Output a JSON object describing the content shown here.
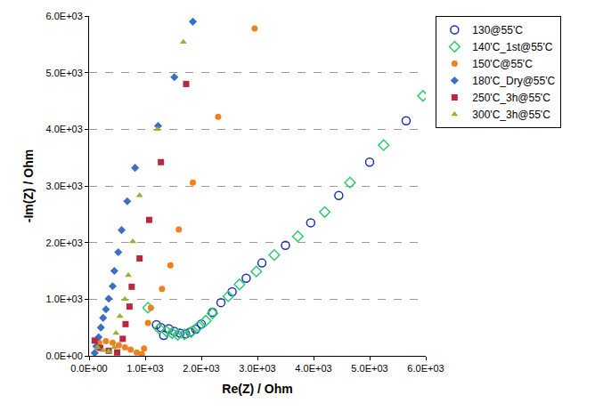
{
  "chart_data": {
    "type": "scatter",
    "x_label": "Re(Z) / Ohm",
    "y_label": "-Im(Z) / Ohm",
    "xlim": [
      0,
      6000
    ],
    "ylim": [
      0,
      6000
    ],
    "xticks": [
      {
        "value": 0,
        "label": "0.0E+00"
      },
      {
        "value": 1000,
        "label": "1.0E+03"
      },
      {
        "value": 2000,
        "label": "2.0E+03"
      },
      {
        "value": 3000,
        "label": "3.0E+03"
      },
      {
        "value": 4000,
        "label": "4.0E+03"
      },
      {
        "value": 5000,
        "label": "5.0E+03"
      },
      {
        "value": 6000,
        "label": "6.0E+03"
      }
    ],
    "yticks": [
      {
        "value": 0,
        "label": "0.0E+00"
      },
      {
        "value": 1000,
        "label": "1.0E+03"
      },
      {
        "value": 2000,
        "label": "2.0E+03"
      },
      {
        "value": 3000,
        "label": "3.0E+03"
      },
      {
        "value": 4000,
        "label": "4.0E+03"
      },
      {
        "value": 5000,
        "label": "5.0E+03"
      },
      {
        "value": 6000,
        "label": "6.0E+03"
      }
    ],
    "grid": true,
    "legend": "right",
    "series": [
      {
        "name": "130@55'C",
        "color": "#1f2fb8",
        "marker": "circle-open",
        "x": [
          1200,
          1280,
          1330,
          1420,
          1520,
          1620,
          1720,
          1800,
          1900,
          2000,
          2200,
          2350,
          2550,
          2800,
          3080,
          3500,
          3950,
          4450,
          5000,
          5650
        ],
        "values": [
          550,
          500,
          360,
          480,
          430,
          400,
          390,
          420,
          470,
          560,
          770,
          940,
          1130,
          1370,
          1640,
          1950,
          2350,
          2830,
          3420,
          4150
        ]
      },
      {
        "name": "140'C_1st@55'C",
        "color": "#2ecc71",
        "marker": "diamond-open",
        "x": [
          1050,
          1250,
          1380,
          1480,
          1580,
          1700,
          1820,
          1950,
          2080,
          2200,
          2480,
          2680,
          2980,
          3300,
          3720,
          4200,
          4650,
          5250,
          5950
        ],
        "values": [
          850,
          480,
          430,
          400,
          370,
          380,
          420,
          520,
          620,
          750,
          1050,
          1260,
          1490,
          1780,
          2110,
          2540,
          3060,
          3720,
          4590
        ]
      },
      {
        "name": "150'C@55'C",
        "color": "#f07f1e",
        "marker": "circle",
        "x": [
          180,
          300,
          420,
          530,
          640,
          740,
          850,
          940,
          980,
          1050,
          1100,
          1300,
          1450,
          1600,
          1850,
          2300,
          2950
        ],
        "values": [
          230,
          260,
          230,
          190,
          150,
          110,
          60,
          30,
          130,
          580,
          850,
          1180,
          1600,
          2230,
          3060,
          4220,
          5780
        ]
      },
      {
        "name": "180'C_Dry@55'C",
        "color": "#3a6fc4",
        "marker": "diamond",
        "x": [
          100,
          130,
          170,
          210,
          250,
          300,
          350,
          420,
          450,
          520,
          580,
          680,
          820,
          1230,
          1520,
          1850
        ],
        "values": [
          50,
          170,
          330,
          500,
          670,
          820,
          1010,
          1230,
          1500,
          1830,
          2220,
          2730,
          3320,
          4060,
          4920,
          5900
        ]
      },
      {
        "name": "250'C_3h@55'C",
        "color": "#b8283e",
        "marker": "square",
        "x": [
          100,
          200,
          350,
          500,
          600,
          650,
          720,
          760,
          900,
          1070,
          1280,
          1730
        ],
        "values": [
          270,
          140,
          90,
          60,
          300,
          560,
          870,
          1220,
          1720,
          2400,
          3420,
          4800
        ]
      },
      {
        "name": "300'C_3h@55'C",
        "color": "#9bb030",
        "marker": "triangle-up",
        "x": [
          150,
          250,
          350,
          450,
          480,
          550,
          640,
          700,
          780,
          900,
          1220,
          1680
        ],
        "values": [
          150,
          100,
          80,
          150,
          400,
          700,
          1000,
          1420,
          2020,
          2830,
          4000,
          5540
        ]
      }
    ]
  }
}
